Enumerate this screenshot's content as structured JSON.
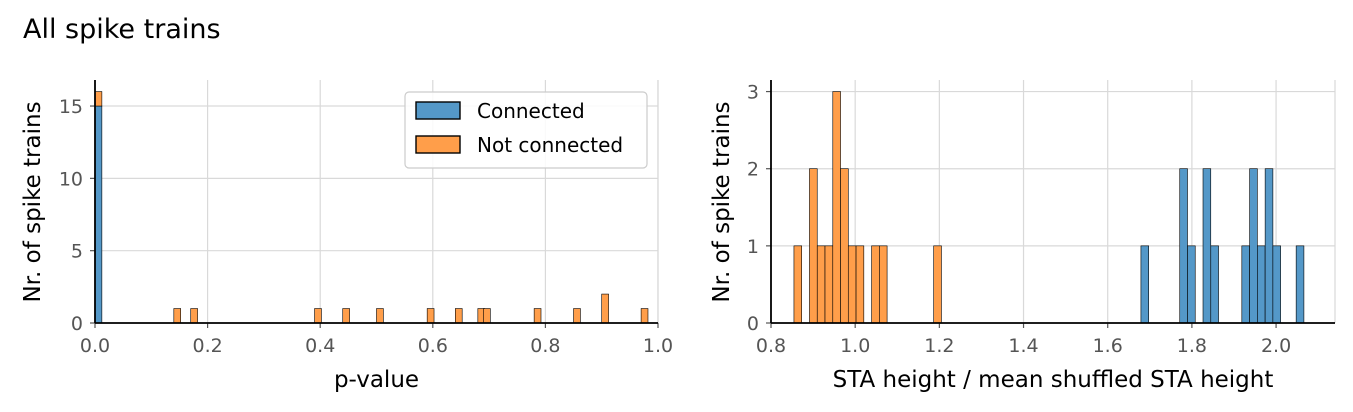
{
  "figure": {
    "title": "All spike trains"
  },
  "colors": {
    "connected": "#5498C8",
    "not_connected": "#FF9E4A",
    "edge": "#000000",
    "grid": "#d9d9d9",
    "tick": "#555555"
  },
  "chart_data": [
    {
      "type": "bar",
      "subtype": "stacked-histogram",
      "xlabel": "p-value",
      "ylabel": "Nr. of spike trains",
      "xlim": [
        0.0,
        1.0
      ],
      "ylim": [
        0,
        16.8
      ],
      "xticks": [
        "0.0",
        "0.2",
        "0.4",
        "0.6",
        "0.8",
        "1.0"
      ],
      "yticks": [
        "0",
        "5",
        "10",
        "15"
      ],
      "grid": true,
      "legend": {
        "position": "top-right",
        "entries": [
          "Connected",
          "Not connected"
        ]
      },
      "bin_width": 0.0122,
      "series": [
        {
          "name": "Connected",
          "color": "#5498C8",
          "bins": [
            {
              "x": 0.0,
              "count": 15
            }
          ]
        },
        {
          "name": "Not connected",
          "color": "#FF9E4A",
          "bins": [
            {
              "x": 0.0,
              "count": 1
            },
            {
              "x": 0.14,
              "count": 1
            },
            {
              "x": 0.17,
              "count": 1
            },
            {
              "x": 0.39,
              "count": 1
            },
            {
              "x": 0.44,
              "count": 1
            },
            {
              "x": 0.5,
              "count": 1
            },
            {
              "x": 0.59,
              "count": 1
            },
            {
              "x": 0.64,
              "count": 1
            },
            {
              "x": 0.68,
              "count": 1
            },
            {
              "x": 0.69,
              "count": 1
            },
            {
              "x": 0.78,
              "count": 1
            },
            {
              "x": 0.85,
              "count": 1
            },
            {
              "x": 0.9,
              "count": 2
            },
            {
              "x": 0.97,
              "count": 1
            }
          ]
        }
      ]
    },
    {
      "type": "bar",
      "subtype": "stacked-histogram",
      "xlabel": "STA height / mean shuffled STA height",
      "ylabel": "Nr. of spike trains",
      "xlim": [
        0.8,
        2.14
      ],
      "ylim": [
        0,
        3.15
      ],
      "xticks": [
        "0.8",
        "1.0",
        "1.2",
        "1.4",
        "1.6",
        "1.8",
        "2.0"
      ],
      "yticks": [
        "0",
        "1",
        "2",
        "3"
      ],
      "grid": true,
      "bin_width": 0.01844,
      "series": [
        {
          "name": "Connected",
          "color": "#5498C8",
          "bins": [
            {
              "x": 1.6789,
              "count": 1
            },
            {
              "x": 1.7711,
              "count": 2
            },
            {
              "x": 1.7895,
              "count": 1
            },
            {
              "x": 1.8264,
              "count": 2
            },
            {
              "x": 1.8449,
              "count": 1
            },
            {
              "x": 1.9186,
              "count": 1
            },
            {
              "x": 1.9371,
              "count": 2
            },
            {
              "x": 1.9555,
              "count": 1
            },
            {
              "x": 1.974,
              "count": 2
            },
            {
              "x": 1.9924,
              "count": 1
            },
            {
              "x": 2.0477,
              "count": 1
            }
          ]
        },
        {
          "name": "Not connected",
          "color": "#FF9E4A",
          "bins": [
            {
              "x": 0.8545,
              "count": 1
            },
            {
              "x": 0.8914,
              "count": 2
            },
            {
              "x": 0.9099,
              "count": 1
            },
            {
              "x": 0.9283,
              "count": 1
            },
            {
              "x": 0.9468,
              "count": 3
            },
            {
              "x": 0.9652,
              "count": 2
            },
            {
              "x": 0.9836,
              "count": 1
            },
            {
              "x": 1.0021,
              "count": 1
            },
            {
              "x": 1.039,
              "count": 1
            },
            {
              "x": 1.0574,
              "count": 1
            },
            {
              "x": 1.1865,
              "count": 1
            }
          ]
        }
      ]
    }
  ]
}
